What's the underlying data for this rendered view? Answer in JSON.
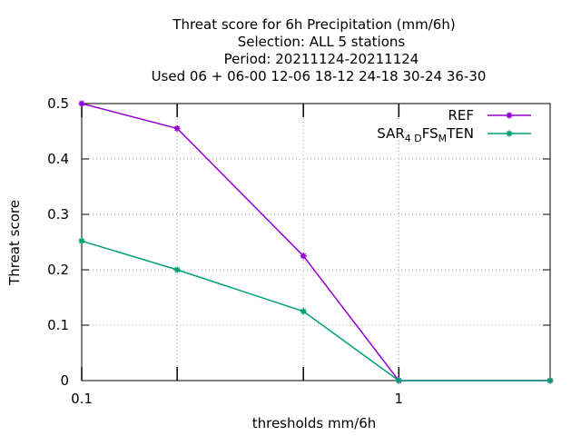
{
  "chart_data": {
    "type": "line",
    "title_lines": [
      "Threat score  for 6h Precipitation (mm/6h)",
      "Selection: ALL      5 stations",
      "Period: 20211124-20211124",
      "Used  06 + 06-00 12-06 18-12 24-18 30-24 36-30"
    ],
    "xlabel": "thresholds mm/6h",
    "ylabel": "Threat score",
    "x_scale": "log",
    "xlim": [
      0.1,
      3
    ],
    "ylim": [
      0,
      0.5
    ],
    "x_tick_labels": [
      {
        "value": 0.1,
        "label": "0.1"
      },
      {
        "value": 1,
        "label": "1"
      }
    ],
    "x_minor_ticks": [
      0.2,
      0.5
    ],
    "y_ticks": [
      {
        "value": 0,
        "label": "0"
      },
      {
        "value": 0.1,
        "label": "0.1"
      },
      {
        "value": 0.2,
        "label": "0.2"
      },
      {
        "value": 0.3,
        "label": "0.3"
      },
      {
        "value": 0.4,
        "label": "0.4"
      },
      {
        "value": 0.5,
        "label": "0.5"
      }
    ],
    "grid": true,
    "legend_position": "top-right",
    "series": [
      {
        "name": "REF",
        "color": "#9400d3",
        "x": [
          0.1,
          0.2,
          0.5,
          1,
          3
        ],
        "y": [
          0.5,
          0.455,
          0.225,
          0,
          0
        ]
      },
      {
        "name_parts": [
          {
            "text": "SAR",
            "sub": false
          },
          {
            "text": "4 D",
            "sub": true
          },
          {
            "text": "FS",
            "sub": false
          },
          {
            "text": "M",
            "sub": true
          },
          {
            "text": "TEN",
            "sub": false
          }
        ],
        "color": "#009e73",
        "x": [
          0.1,
          0.2,
          0.5,
          1,
          3
        ],
        "y": [
          0.252,
          0.2,
          0.125,
          0,
          0
        ]
      }
    ]
  }
}
